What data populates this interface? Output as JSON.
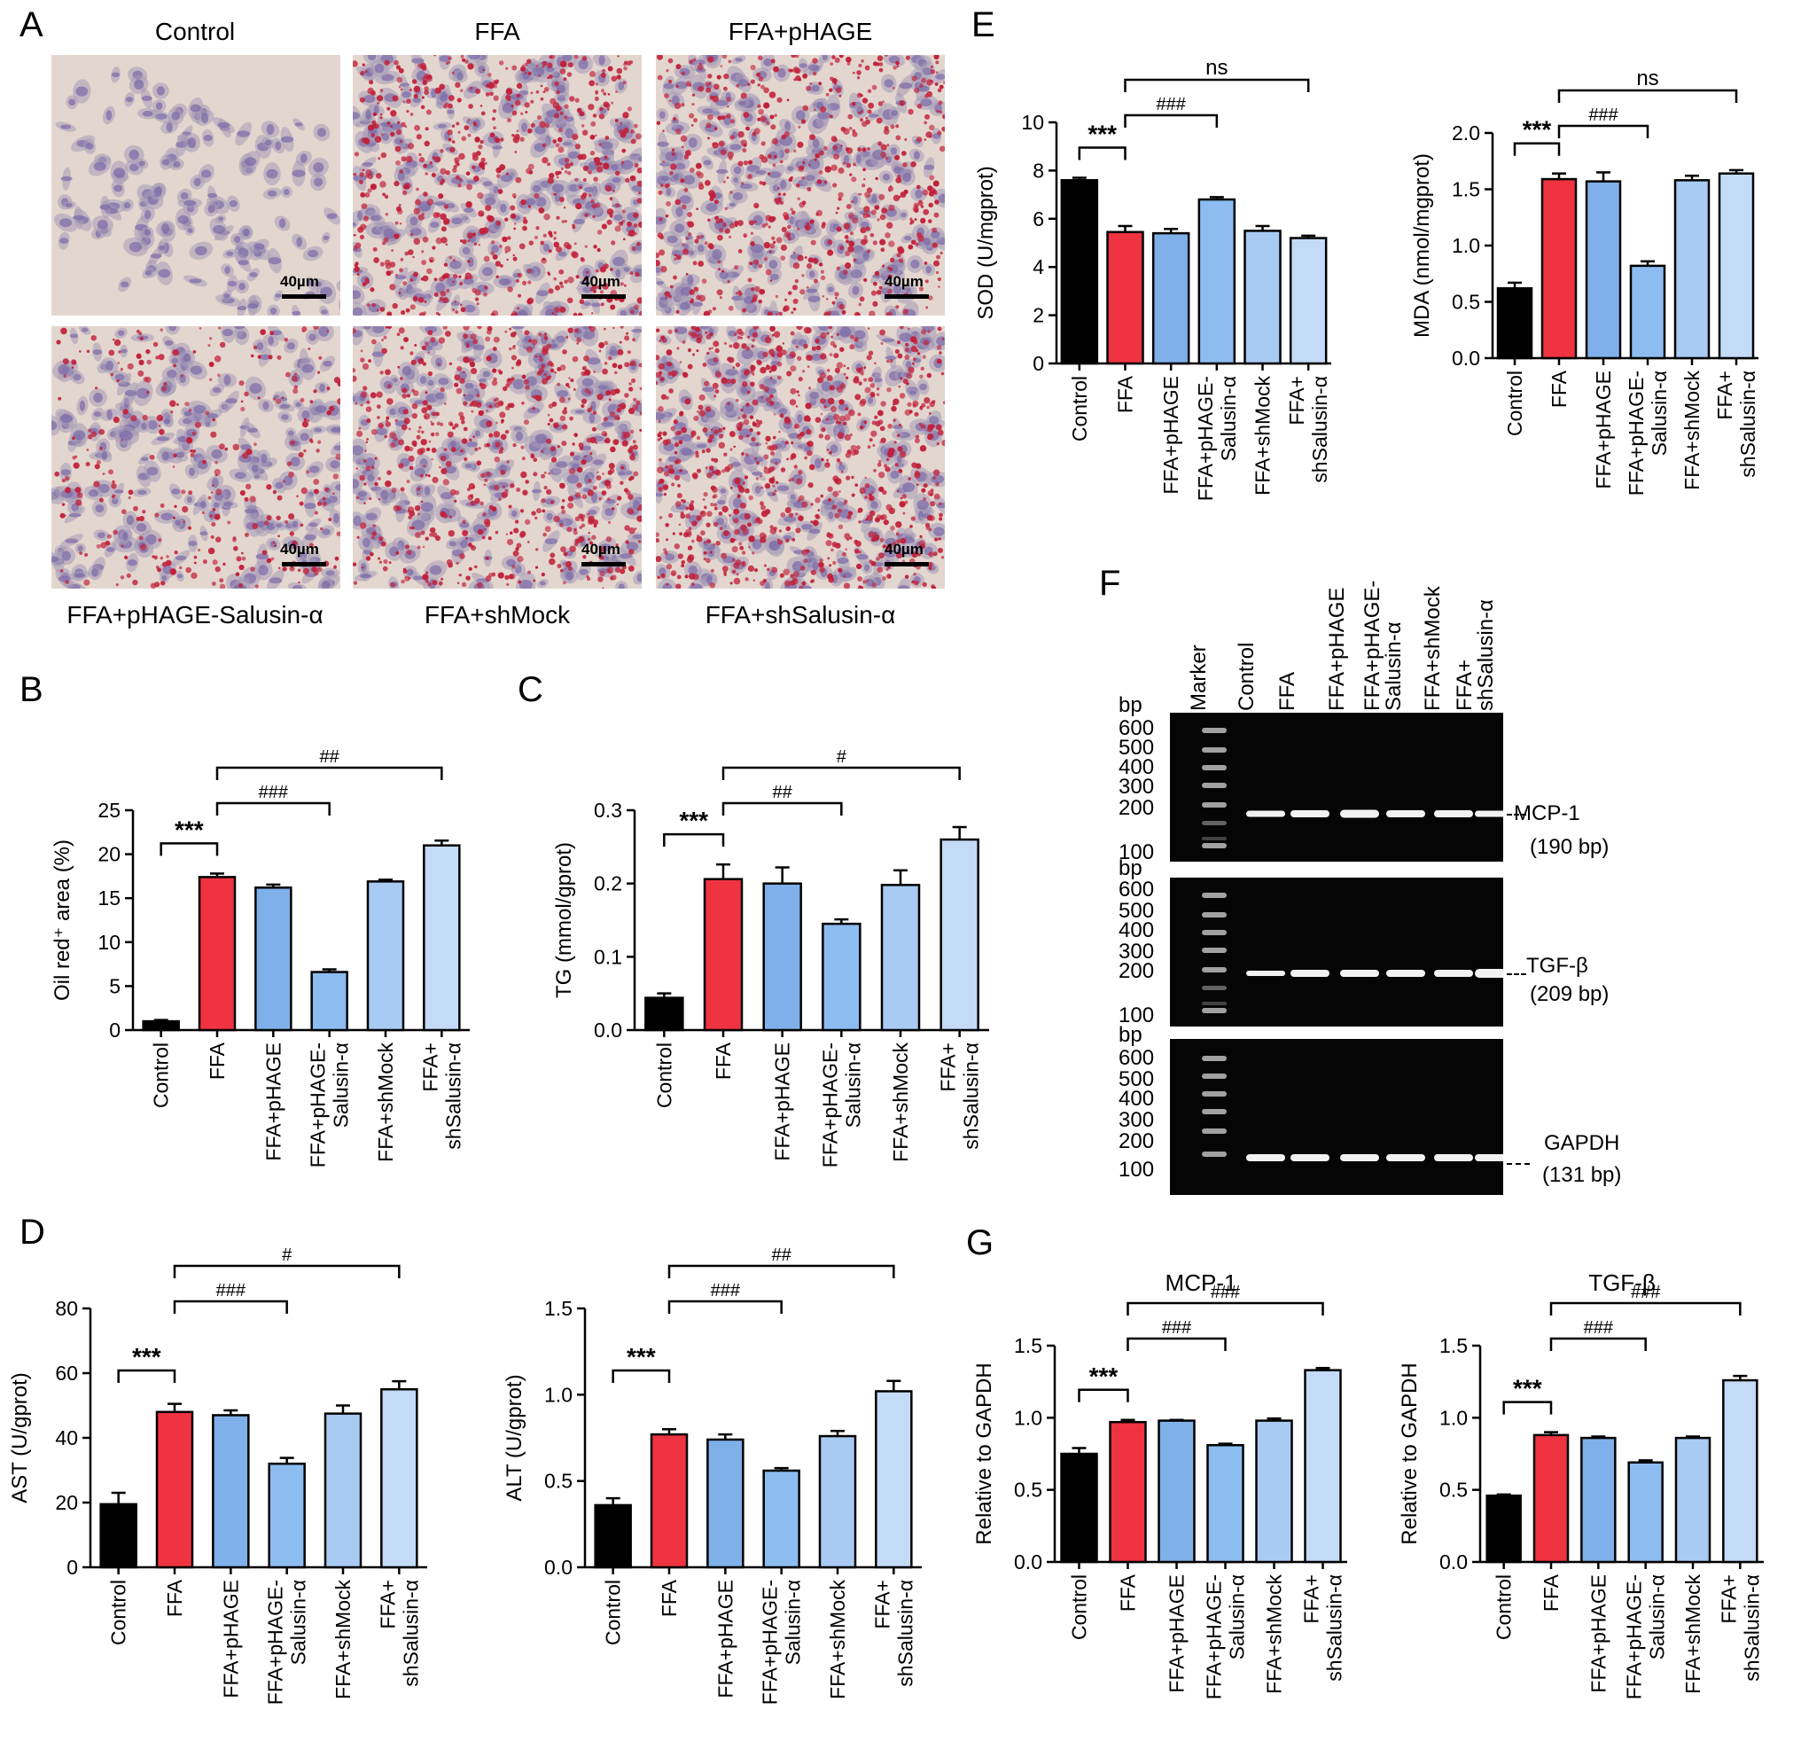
{
  "panel_labels": [
    "A",
    "B",
    "C",
    "D",
    "E",
    "F",
    "G"
  ],
  "micrographs": {
    "titles": [
      "Control",
      "FFA",
      "FFA+pHAGE",
      "FFA+pHAGE-Salusin-α",
      "FFA+shMock",
      "FFA+shSalusin-α"
    ],
    "scale_bar": "40µm",
    "colors": {
      "stroma": "#e3d6ce",
      "nucleus": "#7a6aa8",
      "lipid": "#c1203a",
      "cell": "#a59ab7"
    },
    "lipid_level": [
      0.0,
      0.75,
      0.7,
      0.35,
      0.75,
      0.95
    ]
  },
  "gel": {
    "lane_labels": [
      "Marker",
      "Control",
      "FFA",
      "FFA+pHAGE",
      "FFA+pHAGE-\nSalusin-α",
      "FFA+shMock",
      "FFA+\nshSalusin-α"
    ],
    "ladder_unit": "bp",
    "ladder": [
      "600",
      "500",
      "400",
      "300",
      "200",
      "100"
    ],
    "blots": [
      {
        "gene": "MCP-1",
        "size": "(190 bp)",
        "ladder": [
          "600",
          "500",
          "400",
          "300",
          "200",
          "100"
        ]
      },
      {
        "gene": "TGF-β",
        "size": "(209 bp)",
        "ladder": [
          "600",
          "500",
          "400",
          "300",
          "200",
          "100"
        ]
      },
      {
        "gene": "GAPDH",
        "size": "(131 bp)",
        "ladder": [
          "600",
          "500",
          "400",
          "300",
          "200",
          "100"
        ]
      }
    ]
  },
  "chart_data": [
    {
      "id": "B",
      "type": "bar",
      "title": "",
      "ylabel": "Oil red⁺ area (%)",
      "ylim": [
        0,
        25
      ],
      "yticks": [
        0,
        5,
        10,
        15,
        20,
        25
      ],
      "categories": [
        "Control",
        "FFA",
        "FFA+pHAGE",
        "FFA+pHAGE-\nSalusin-α",
        "FFA+shMock",
        "FFA+\nshSalusin-α"
      ],
      "values": [
        1.0,
        17.4,
        16.2,
        6.6,
        16.9,
        21.0
      ],
      "errors": [
        0.15,
        0.4,
        0.35,
        0.3,
        0.2,
        0.55
      ],
      "brackets": [
        {
          "a": 0,
          "b": 1,
          "label": "***",
          "level": 0
        },
        {
          "a": 1,
          "b": 3,
          "label": "###",
          "level": 1
        },
        {
          "a": 1,
          "b": 5,
          "label": "##",
          "level": 2
        }
      ]
    },
    {
      "id": "C",
      "type": "bar",
      "title": "",
      "ylabel": "TG (mmol/gprot)",
      "ylim": [
        0,
        0.3
      ],
      "yticks": [
        0.0,
        0.1,
        0.2,
        0.3
      ],
      "categories": [
        "Control",
        "FFA",
        "FFA+pHAGE",
        "FFA+pHAGE-\nSalusin-α",
        "FFA+shMock",
        "FFA+\nshSalusin-α"
      ],
      "values": [
        0.044,
        0.206,
        0.2,
        0.145,
        0.198,
        0.26
      ],
      "errors": [
        0.006,
        0.02,
        0.022,
        0.006,
        0.02,
        0.017
      ],
      "brackets": [
        {
          "a": 0,
          "b": 1,
          "label": "***",
          "level": 0
        },
        {
          "a": 1,
          "b": 3,
          "label": "##",
          "level": 1
        },
        {
          "a": 1,
          "b": 5,
          "label": "#",
          "level": 2
        }
      ]
    },
    {
      "id": "D1",
      "type": "bar",
      "title": "",
      "ylabel": "AST (U/gprot)",
      "ylim": [
        0,
        80
      ],
      "yticks": [
        0,
        20,
        40,
        60,
        80
      ],
      "categories": [
        "Control",
        "FFA",
        "FFA+pHAGE",
        "FFA+pHAGE-\nSalusin-α",
        "FFA+shMock",
        "FFA+\nshSalusin-α"
      ],
      "values": [
        19.5,
        48.0,
        47.0,
        32.0,
        47.5,
        55.0
      ],
      "errors": [
        3.5,
        2.5,
        1.5,
        1.8,
        2.5,
        2.5
      ],
      "brackets": [
        {
          "a": 0,
          "b": 1,
          "label": "***",
          "level": 0
        },
        {
          "a": 1,
          "b": 3,
          "label": "###",
          "level": 1
        },
        {
          "a": 1,
          "b": 5,
          "label": "#",
          "level": 2
        }
      ]
    },
    {
      "id": "D2",
      "type": "bar",
      "title": "",
      "ylabel": "ALT (U/gprot)",
      "ylim": [
        0,
        1.5
      ],
      "yticks": [
        0.0,
        0.5,
        1.0,
        1.5
      ],
      "categories": [
        "Control",
        "FFA",
        "FFA+pHAGE",
        "FFA+pHAGE-\nSalusin-α",
        "FFA+shMock",
        "FFA+\nshSalusin-α"
      ],
      "values": [
        0.36,
        0.77,
        0.74,
        0.56,
        0.76,
        1.02
      ],
      "errors": [
        0.04,
        0.03,
        0.03,
        0.015,
        0.03,
        0.06
      ],
      "brackets": [
        {
          "a": 0,
          "b": 1,
          "label": "***",
          "level": 0
        },
        {
          "a": 1,
          "b": 3,
          "label": "###",
          "level": 1
        },
        {
          "a": 1,
          "b": 5,
          "label": "##",
          "level": 2
        }
      ]
    },
    {
      "id": "E1",
      "type": "bar",
      "title": "",
      "ylabel": "SOD (U/mgprot)",
      "ylim": [
        0,
        10
      ],
      "yticks": [
        0,
        2,
        4,
        6,
        8,
        10
      ],
      "categories": [
        "Control",
        "FFA",
        "FFA+pHAGE",
        "FFA+pHAGE-\nSalusin-α",
        "FFA+shMock",
        "FFA+\nshSalusin-α"
      ],
      "values": [
        7.6,
        5.45,
        5.4,
        6.8,
        5.5,
        5.2
      ],
      "errors": [
        0.1,
        0.25,
        0.18,
        0.1,
        0.2,
        0.1
      ],
      "brackets": [
        {
          "a": 0,
          "b": 1,
          "label": "***",
          "level": 0
        },
        {
          "a": 1,
          "b": 3,
          "label": "###",
          "level": 1
        },
        {
          "a": 1,
          "b": 5,
          "label": "ns",
          "level": 2
        }
      ]
    },
    {
      "id": "E2",
      "type": "bar",
      "title": "",
      "ylabel": "MDA (nmol/mgprot)",
      "ylim": [
        0,
        2.0
      ],
      "yticks": [
        0.0,
        0.5,
        1.0,
        1.5,
        2.0
      ],
      "categories": [
        "Control",
        "FFA",
        "FFA+pHAGE",
        "FFA+pHAGE-\nSalusin-α",
        "FFA+shMock",
        "FFA+\nshSalusin-α"
      ],
      "values": [
        0.62,
        1.59,
        1.57,
        0.82,
        1.58,
        1.64
      ],
      "errors": [
        0.05,
        0.05,
        0.08,
        0.04,
        0.04,
        0.03
      ],
      "brackets": [
        {
          "a": 0,
          "b": 1,
          "label": "***",
          "level": 0
        },
        {
          "a": 1,
          "b": 3,
          "label": "###",
          "level": 1
        },
        {
          "a": 1,
          "b": 5,
          "label": "ns",
          "level": 2
        }
      ]
    },
    {
      "id": "G1",
      "type": "bar",
      "title": "MCP-1",
      "ylabel": "Relative to GAPDH",
      "ylim": [
        0,
        1.5
      ],
      "yticks": [
        0.0,
        0.5,
        1.0,
        1.5
      ],
      "categories": [
        "Control",
        "FFA",
        "FFA+pHAGE",
        "FFA+pHAGE-\nSalusin-α",
        "FFA+shMock",
        "FFA+\nshSalusin-α"
      ],
      "values": [
        0.75,
        0.97,
        0.98,
        0.81,
        0.98,
        1.33
      ],
      "errors": [
        0.04,
        0.015,
        0.005,
        0.01,
        0.015,
        0.015
      ],
      "brackets": [
        {
          "a": 0,
          "b": 1,
          "label": "***",
          "level": 0
        },
        {
          "a": 1,
          "b": 3,
          "label": "###",
          "level": 1
        },
        {
          "a": 1,
          "b": 5,
          "label": "###",
          "level": 2
        }
      ]
    },
    {
      "id": "G2",
      "type": "bar",
      "title": "TGF-β",
      "ylabel": "Relative to GAPDH",
      "ylim": [
        0,
        1.5
      ],
      "yticks": [
        0.0,
        0.5,
        1.0,
        1.5
      ],
      "categories": [
        "Control",
        "FFA",
        "FFA+pHAGE",
        "FFA+pHAGE-\nSalusin-α",
        "FFA+shMock",
        "FFA+\nshSalusin-α"
      ],
      "values": [
        0.46,
        0.88,
        0.86,
        0.69,
        0.86,
        1.26
      ],
      "errors": [
        0.008,
        0.02,
        0.01,
        0.015,
        0.01,
        0.03
      ],
      "brackets": [
        {
          "a": 0,
          "b": 1,
          "label": "***",
          "level": 0
        },
        {
          "a": 1,
          "b": 3,
          "label": "###",
          "level": 1
        },
        {
          "a": 1,
          "b": 5,
          "label": "###",
          "level": 2
        }
      ]
    }
  ],
  "bar_colors": [
    "#000000",
    "#ef3340",
    "#7fb0ea",
    "#8dbcf0",
    "#a9cbf3",
    "#c4dbf7"
  ]
}
